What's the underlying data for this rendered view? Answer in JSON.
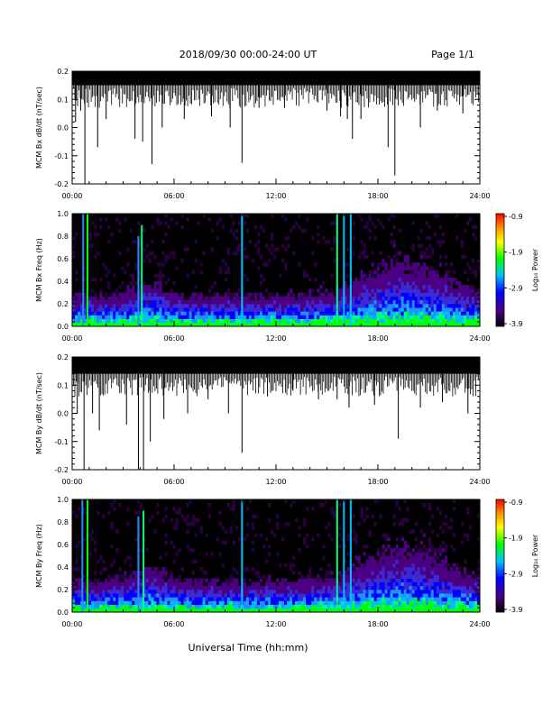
{
  "header": {
    "title": "2018/09/30  00:00-24:00 UT",
    "page": "Page 1/1"
  },
  "footer": {
    "xlabel": "Universal Time (hh:mm)"
  },
  "colorbar": {
    "label": "Log₁₀ Power",
    "ticks": [
      "-0.9",
      "-1.9",
      "-2.9",
      "-3.9"
    ],
    "range": [
      -3.9,
      -0.9
    ],
    "colors": [
      "#000000",
      "#4b0082",
      "#0000ff",
      "#00bfff",
      "#00ff00",
      "#ffff00",
      "#ff8c00",
      "#ff0000"
    ]
  },
  "chart_data": [
    {
      "type": "line",
      "ylabel": "MCM Bx dB/dt (nT/sec)",
      "xticks": [
        "00:00",
        "06:00",
        "12:00",
        "18:00",
        "24:00"
      ],
      "yticks": [
        "0.2",
        "0.1",
        "0.0",
        "-0.1",
        "-0.2"
      ],
      "xlim": [
        0,
        24
      ],
      "ylim": [
        -0.2,
        0.2
      ],
      "baseline_band": [
        0.15,
        0.2
      ],
      "spikes": [
        {
          "x": 0.2,
          "y": 0.02
        },
        {
          "x": 0.5,
          "y": 0.06
        },
        {
          "x": 0.75,
          "y": -0.2
        },
        {
          "x": 1.5,
          "y": -0.07
        },
        {
          "x": 2.0,
          "y": 0.03
        },
        {
          "x": 3.7,
          "y": -0.04
        },
        {
          "x": 4.15,
          "y": -0.05
        },
        {
          "x": 4.7,
          "y": -0.13
        },
        {
          "x": 5.3,
          "y": 0.0
        },
        {
          "x": 6.6,
          "y": 0.03
        },
        {
          "x": 8.2,
          "y": 0.04
        },
        {
          "x": 9.3,
          "y": 0.0
        },
        {
          "x": 10.0,
          "y": -0.125
        },
        {
          "x": 11.0,
          "y": 0.07
        },
        {
          "x": 12.5,
          "y": 0.07
        },
        {
          "x": 15.0,
          "y": 0.06
        },
        {
          "x": 15.8,
          "y": 0.04
        },
        {
          "x": 16.2,
          "y": 0.03
        },
        {
          "x": 16.5,
          "y": -0.04
        },
        {
          "x": 17.0,
          "y": 0.03
        },
        {
          "x": 18.6,
          "y": -0.07
        },
        {
          "x": 19.0,
          "y": -0.17
        },
        {
          "x": 20.5,
          "y": 0.0
        },
        {
          "x": 21.5,
          "y": 0.06
        },
        {
          "x": 23.0,
          "y": 0.05
        }
      ]
    },
    {
      "type": "heatmap",
      "ylabel": "MCM Bx Freq (Hz)",
      "xticks": [
        "00:00",
        "06:00",
        "12:00",
        "18:00",
        "24:00"
      ],
      "yticks": [
        "1.0",
        "0.8",
        "0.6",
        "0.4",
        "0.2",
        "0.0"
      ],
      "xlim": [
        0,
        24
      ],
      "ylim": [
        0,
        1.0
      ],
      "vertical_lines": [
        {
          "x": 0.65,
          "ymax": 1.0,
          "color": "#1e90ff"
        },
        {
          "x": 0.9,
          "ymax": 1.0,
          "color": "#00ff00"
        },
        {
          "x": 3.9,
          "ymax": 0.8,
          "color": "#1e90ff"
        },
        {
          "x": 4.1,
          "ymax": 0.9,
          "color": "#00ff7f"
        },
        {
          "x": 10.0,
          "ymax": 1.0,
          "color": "#00bfff"
        },
        {
          "x": 15.6,
          "ymax": 1.0,
          "color": "#00ff7f"
        },
        {
          "x": 16.0,
          "ymax": 1.0,
          "color": "#00bfff"
        },
        {
          "x": 16.4,
          "ymax": 1.0,
          "color": "#00bfff"
        }
      ]
    },
    {
      "type": "line",
      "ylabel": "MCM By dB/dt (nT/sec)",
      "xticks": [
        "00:00",
        "06:00",
        "12:00",
        "18:00",
        "24:00"
      ],
      "yticks": [
        "0.2",
        "0.1",
        "0.0",
        "-0.1",
        "-0.2"
      ],
      "xlim": [
        0,
        24
      ],
      "ylim": [
        -0.2,
        0.2
      ],
      "baseline_band": [
        0.14,
        0.2
      ],
      "spikes": [
        {
          "x": 0.3,
          "y": 0.0
        },
        {
          "x": 0.7,
          "y": -0.2
        },
        {
          "x": 1.2,
          "y": 0.0
        },
        {
          "x": 1.6,
          "y": -0.06
        },
        {
          "x": 3.2,
          "y": -0.04
        },
        {
          "x": 3.9,
          "y": -0.2
        },
        {
          "x": 4.2,
          "y": -0.2
        },
        {
          "x": 4.6,
          "y": -0.1
        },
        {
          "x": 5.4,
          "y": -0.02
        },
        {
          "x": 6.8,
          "y": 0.0
        },
        {
          "x": 8.0,
          "y": 0.05
        },
        {
          "x": 9.2,
          "y": 0.0
        },
        {
          "x": 10.0,
          "y": -0.14
        },
        {
          "x": 11.5,
          "y": 0.06
        },
        {
          "x": 13.0,
          "y": 0.08
        },
        {
          "x": 14.5,
          "y": 0.05
        },
        {
          "x": 15.6,
          "y": 0.05
        },
        {
          "x": 16.3,
          "y": 0.02
        },
        {
          "x": 17.8,
          "y": 0.03
        },
        {
          "x": 19.2,
          "y": -0.09
        },
        {
          "x": 20.5,
          "y": 0.02
        },
        {
          "x": 21.8,
          "y": 0.04
        },
        {
          "x": 23.3,
          "y": 0.0
        }
      ]
    },
    {
      "type": "heatmap",
      "ylabel": "MCM By Freq (Hz)",
      "xticks": [
        "00:00",
        "06:00",
        "12:00",
        "18:00",
        "24:00"
      ],
      "yticks": [
        "1.0",
        "0.8",
        "0.6",
        "0.4",
        "0.2",
        "0.0"
      ],
      "xlim": [
        0,
        24
      ],
      "ylim": [
        0,
        1.0
      ],
      "vertical_lines": [
        {
          "x": 0.6,
          "ymax": 1.0,
          "color": "#1e90ff"
        },
        {
          "x": 0.9,
          "ymax": 1.0,
          "color": "#00ff00"
        },
        {
          "x": 3.9,
          "ymax": 0.85,
          "color": "#1e90ff"
        },
        {
          "x": 4.2,
          "ymax": 0.9,
          "color": "#00ff7f"
        },
        {
          "x": 10.0,
          "ymax": 1.0,
          "color": "#00bfff"
        },
        {
          "x": 15.6,
          "ymax": 1.0,
          "color": "#00ff7f"
        },
        {
          "x": 16.0,
          "ymax": 1.0,
          "color": "#00bfff"
        },
        {
          "x": 16.4,
          "ymax": 1.0,
          "color": "#00bfff"
        }
      ]
    }
  ]
}
